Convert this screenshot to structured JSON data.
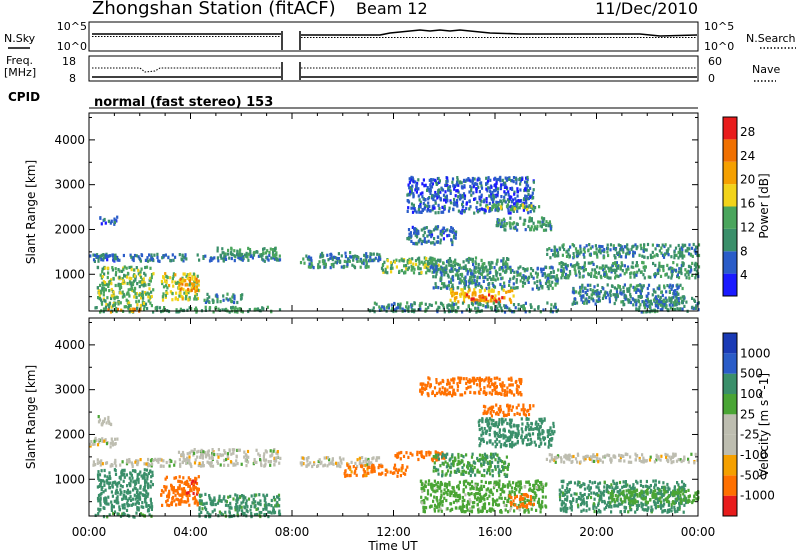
{
  "header": {
    "title": "Zhongshan Station (fitACF)",
    "beam": "Beam 12",
    "date": "11/Dec/2010"
  },
  "strips": {
    "nsky_label": "N.Sky",
    "nsearch_label": "N.Search",
    "freq_label_1": "Freq.",
    "freq_label_2": "[MHz]",
    "nave_label": "Nave",
    "cpid_label": "CPID",
    "cpid_text": "normal (fast stereo) 153",
    "noise_ticks_left": [
      "10^5",
      "10^0"
    ],
    "noise_ticks_right": [
      "10^5",
      "10^0"
    ],
    "freq_ticks": [
      "18",
      "8"
    ],
    "nave_ticks": [
      "60",
      "0"
    ]
  },
  "colors": {
    "power_scale": [
      "#1a1aff",
      "#2a5cc8",
      "#3a8f6a",
      "#4aa55c",
      "#f2d31a",
      "#f5a000",
      "#f07000",
      "#e81c1c"
    ],
    "velocity_scale": [
      "#e81c1c",
      "#ff7000",
      "#f5a000",
      "#bdbdb0",
      "#bdbdb0",
      "#4aa535",
      "#3a8f6a",
      "#2a5cc8",
      "#1a3ab5"
    ]
  },
  "chart_data": [
    {
      "type": "heatmap",
      "name": "power",
      "ylabel": "Slant Range [km]",
      "x_ticks": [
        "00:00",
        "04:00",
        "08:00",
        "12:00",
        "16:00",
        "20:00",
        "00:00"
      ],
      "y_ticks": [
        1000,
        2000,
        3000,
        4000
      ],
      "ylim": [
        180,
        4600
      ],
      "colorbar_label": "Power [dB]",
      "colorbar_ticks": [
        4,
        8,
        12,
        16,
        20,
        24,
        28
      ],
      "colorbar_range": [
        0,
        30
      ],
      "data_gap_hours": [
        7.5,
        8.3
      ],
      "regions": [
        {
          "t": [
            0.0,
            1.1
          ],
          "r": [
            1300,
            1500
          ],
          "v": 7
        },
        {
          "t": [
            0.4,
            1.1
          ],
          "r": [
            2150,
            2350
          ],
          "v": 6
        },
        {
          "t": [
            0.1,
            7.5
          ],
          "r": [
            1320,
            1480
          ],
          "v": 8
        },
        {
          "t": [
            5.0,
            7.5
          ],
          "r": [
            1420,
            1620
          ],
          "v": 12
        },
        {
          "t": [
            0.3,
            2.5
          ],
          "r": [
            300,
            1200
          ],
          "v": 14
        },
        {
          "t": [
            2.8,
            4.3
          ],
          "r": [
            450,
            1050
          ],
          "v": 17
        },
        {
          "t": [
            3.5,
            4.3
          ],
          "r": [
            650,
            950
          ],
          "v": 23
        },
        {
          "t": [
            0.2,
            7.5
          ],
          "r": [
            190,
            300
          ],
          "v": 12
        },
        {
          "t": [
            0.6,
            2.0
          ],
          "r": [
            190,
            260
          ],
          "v": 23
        },
        {
          "t": [
            4.5,
            6.0
          ],
          "r": [
            400,
            600
          ],
          "v": 10
        },
        {
          "t": [
            8.3,
            11.5
          ],
          "r": [
            1320,
            1520
          ],
          "v": 9
        },
        {
          "t": [
            8.3,
            11.0
          ],
          "r": [
            1180,
            1330
          ],
          "v": 11
        },
        {
          "t": [
            11.5,
            13.8
          ],
          "r": [
            1050,
            1400
          ],
          "v": 14
        },
        {
          "t": [
            12.5,
            14.5
          ],
          "r": [
            1700,
            2100
          ],
          "v": 7
        },
        {
          "t": [
            12.5,
            17.5
          ],
          "r": [
            2400,
            3200
          ],
          "v": 6
        },
        {
          "t": [
            15.6,
            17.8
          ],
          "r": [
            2450,
            2600
          ],
          "v": 14
        },
        {
          "t": [
            16.0,
            18.2
          ],
          "r": [
            2000,
            2300
          ],
          "v": 11
        },
        {
          "t": [
            13.3,
            16.5
          ],
          "r": [
            1100,
            1400
          ],
          "v": 11
        },
        {
          "t": [
            13.5,
            18.5
          ],
          "r": [
            700,
            1200
          ],
          "v": 10
        },
        {
          "t": [
            14.2,
            16.7
          ],
          "r": [
            400,
            700
          ],
          "v": 20
        },
        {
          "t": [
            14.8,
            16.3
          ],
          "r": [
            420,
            580
          ],
          "v": 27
        },
        {
          "t": [
            11.0,
            18.5
          ],
          "r": [
            190,
            400
          ],
          "v": 10
        },
        {
          "t": [
            18.0,
            24.0
          ],
          "r": [
            1400,
            1700
          ],
          "v": 10
        },
        {
          "t": [
            18.5,
            24.0
          ],
          "r": [
            950,
            1300
          ],
          "v": 11
        },
        {
          "t": [
            19.0,
            23.5
          ],
          "r": [
            350,
            800
          ],
          "v": 9
        },
        {
          "t": [
            21.5,
            24.0
          ],
          "r": [
            190,
            500
          ],
          "v": 10
        }
      ]
    },
    {
      "type": "heatmap",
      "name": "velocity",
      "ylabel": "Slant Range [km]",
      "xlabel": "Time UT",
      "x_ticks": [
        "00:00",
        "04:00",
        "08:00",
        "12:00",
        "16:00",
        "20:00",
        "00:00"
      ],
      "y_ticks": [
        1000,
        2000,
        3000,
        4000
      ],
      "ylim": [
        180,
        4600
      ],
      "colorbar_label": "Velocity [m s^-1]",
      "colorbar_ticks": [
        "1000",
        "500",
        "100",
        "25",
        "-25",
        "-100",
        "-500",
        "-1000"
      ],
      "colorbar_range": [
        -1000,
        1000
      ],
      "data_gap_hours": [
        7.5,
        8.3
      ],
      "regions": [
        {
          "t": [
            0.0,
            1.2
          ],
          "r": [
            1750,
            1950
          ],
          "v": 0
        },
        {
          "t": [
            0.3,
            1.0
          ],
          "r": [
            2250,
            2450
          ],
          "v": 0
        },
        {
          "t": [
            0.1,
            7.5
          ],
          "r": [
            1320,
            1480
          ],
          "v": 0
        },
        {
          "t": [
            3.5,
            7.5
          ],
          "r": [
            1500,
            1700
          ],
          "v": 0
        },
        {
          "t": [
            0.3,
            2.5
          ],
          "r": [
            300,
            1250
          ],
          "v": 200
        },
        {
          "t": [
            2.8,
            4.3
          ],
          "r": [
            450,
            1100
          ],
          "v": -200
        },
        {
          "t": [
            3.8,
            4.3
          ],
          "r": [
            700,
            1000
          ],
          "v": -450
        },
        {
          "t": [
            4.3,
            7.5
          ],
          "r": [
            200,
            700
          ],
          "v": 150
        },
        {
          "t": [
            0.2,
            2.5
          ],
          "r": [
            190,
            280
          ],
          "v": 100
        },
        {
          "t": [
            8.3,
            11.5
          ],
          "r": [
            1320,
            1520
          ],
          "v": 0
        },
        {
          "t": [
            10.0,
            12.5
          ],
          "r": [
            1100,
            1350
          ],
          "v": -150
        },
        {
          "t": [
            12.0,
            14.0
          ],
          "r": [
            1450,
            1650
          ],
          "v": -200
        },
        {
          "t": [
            13.0,
            17.0
          ],
          "r": [
            2900,
            3300
          ],
          "v": -200
        },
        {
          "t": [
            15.5,
            17.5
          ],
          "r": [
            2450,
            2700
          ],
          "v": -250
        },
        {
          "t": [
            15.3,
            18.3
          ],
          "r": [
            1750,
            2400
          ],
          "v": 250
        },
        {
          "t": [
            13.5,
            16.5
          ],
          "r": [
            1100,
            1600
          ],
          "v": 100
        },
        {
          "t": [
            13.0,
            18.0
          ],
          "r": [
            300,
            1000
          ],
          "v": 50
        },
        {
          "t": [
            16.5,
            17.5
          ],
          "r": [
            400,
            700
          ],
          "v": -200
        },
        {
          "t": [
            18.0,
            24.0
          ],
          "r": [
            1400,
            1600
          ],
          "v": 0
        },
        {
          "t": [
            18.5,
            23.5
          ],
          "r": [
            300,
            1000
          ],
          "v": 150
        },
        {
          "t": [
            20.5,
            24.0
          ],
          "r": [
            500,
            800
          ],
          "v": 60
        }
      ]
    }
  ]
}
